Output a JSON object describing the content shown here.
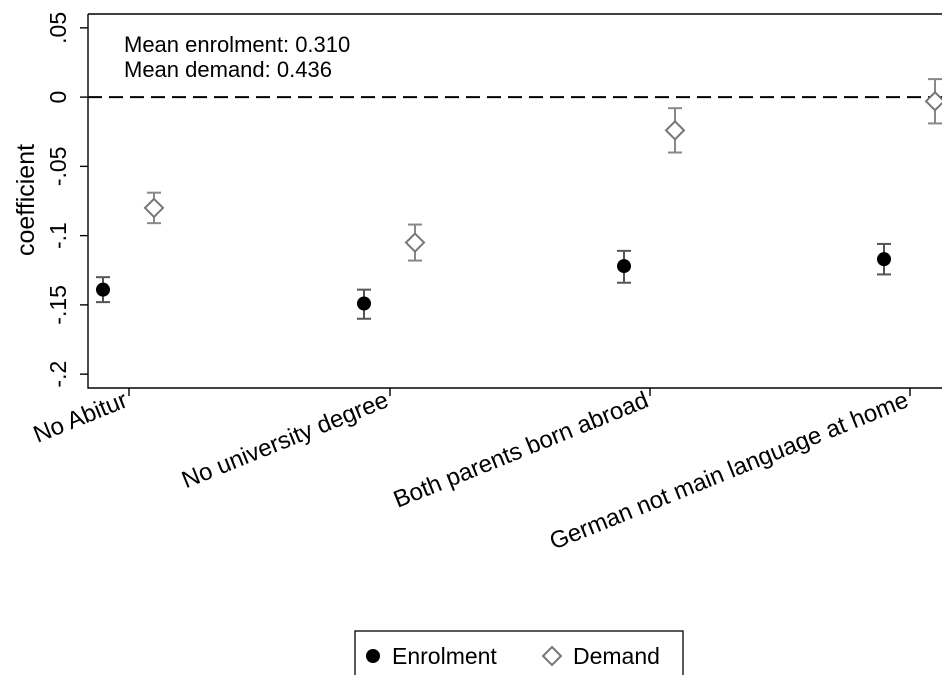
{
  "chart_data": {
    "type": "scatter",
    "xlabel": "",
    "ylabel": "coefficient",
    "ylim": [
      -0.2,
      0.05
    ],
    "yticks": [
      {
        "value": 0.05,
        "label": ".05"
      },
      {
        "value": 0,
        "label": "0"
      },
      {
        "value": -0.05,
        "label": "-.05"
      },
      {
        "value": -0.1,
        "label": "-.1"
      },
      {
        "value": -0.15,
        "label": "-.15"
      },
      {
        "value": -0.2,
        "label": "-.2"
      }
    ],
    "categories": [
      "No Abitur",
      "No university degree",
      "Both parents born abroad",
      "German not main language at home"
    ],
    "reference_line": {
      "y": 0,
      "style": "dashed"
    },
    "annotations": [
      "Mean enrolment: 0.310",
      "Mean demand: 0.436"
    ],
    "legend_position": "bottom",
    "series": [
      {
        "name": "Enrolment",
        "marker": "filled-circle",
        "color": "#000000",
        "values": [
          -0.139,
          -0.149,
          -0.122,
          -0.117
        ],
        "ci_low": [
          -0.148,
          -0.16,
          -0.134,
          -0.128
        ],
        "ci_high": [
          -0.13,
          -0.139,
          -0.111,
          -0.106
        ]
      },
      {
        "name": "Demand",
        "marker": "hollow-diamond",
        "color": "#777777",
        "values": [
          -0.08,
          -0.105,
          -0.024,
          -0.003
        ],
        "ci_low": [
          -0.091,
          -0.118,
          -0.04,
          -0.019
        ],
        "ci_high": [
          -0.069,
          -0.092,
          -0.008,
          0.013
        ]
      }
    ]
  }
}
